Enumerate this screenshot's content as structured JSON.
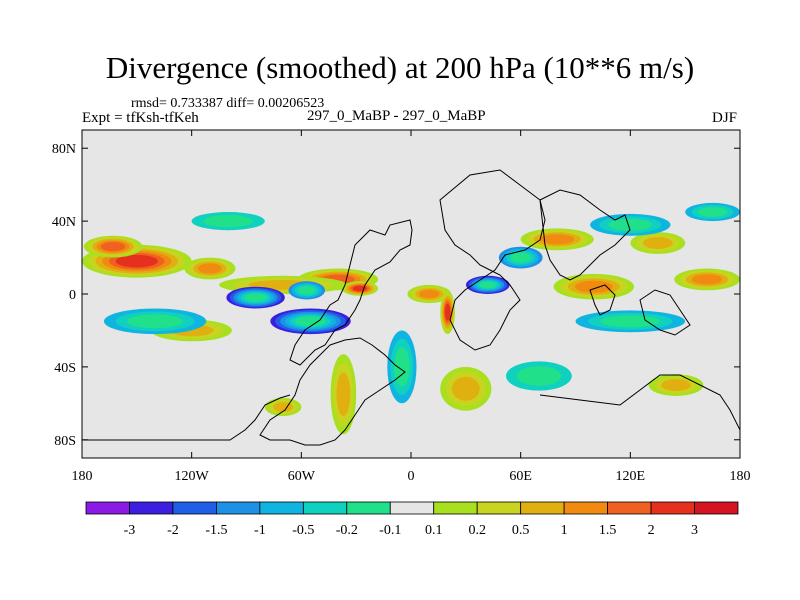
{
  "chart_data": {
    "type": "heatmap",
    "title": "Divergence (smoothed) at 200 hPa (10**6 m/s)",
    "stats_label": "rmsd= 0.733387 diff= 0.00206523",
    "expt_label": "Expt = tfKsh-tfKeh",
    "subtitle": "297_0_MaBP - 297_0_MaBP",
    "season": "DJF",
    "x_ticks": [
      "180",
      "120W",
      "60W",
      "0",
      "60E",
      "120E",
      "180"
    ],
    "y_ticks": [
      "80N",
      "40N",
      "0",
      "40S",
      "80S"
    ],
    "xlim": [
      -180,
      180
    ],
    "ylim": [
      -90,
      90
    ],
    "colorbar": {
      "colors": [
        "#8a1be6",
        "#3b1ee0",
        "#1e5fe6",
        "#1e90e6",
        "#10b4e0",
        "#10d0c0",
        "#20e08a",
        "#e6e6e6",
        "#a8e020",
        "#c8d420",
        "#e0b010",
        "#f08a10",
        "#f06020",
        "#e6301e",
        "#d4141e"
      ],
      "labels": [
        "-3",
        "-2",
        "-1.5",
        "-1",
        "-0.5",
        "-0.2",
        "-0.1",
        "0.1",
        "0.2",
        "0.5",
        "1",
        "1.5",
        "2",
        "3"
      ]
    },
    "features": [
      {
        "lon": -150,
        "lat": 18,
        "rx": 30,
        "ry": 9,
        "value": 2.2
      },
      {
        "lon": -163,
        "lat": 26,
        "rx": 16,
        "ry": 6,
        "value": 1.6
      },
      {
        "lon": -110,
        "lat": 14,
        "rx": 14,
        "ry": 6,
        "value": 1.2
      },
      {
        "lon": -40,
        "lat": 8,
        "rx": 22,
        "ry": 6,
        "value": 1.6
      },
      {
        "lon": -28,
        "lat": 3,
        "rx": 10,
        "ry": 4,
        "value": 2.6
      },
      {
        "lon": 10,
        "lat": 0,
        "rx": 12,
        "ry": 5,
        "value": 1.2
      },
      {
        "lon": 20,
        "lat": -10,
        "rx": 4,
        "ry": 12,
        "value": 2.5
      },
      {
        "lon": 100,
        "lat": 4,
        "rx": 22,
        "ry": 7,
        "value": 1.5
      },
      {
        "lon": 162,
        "lat": 8,
        "rx": 18,
        "ry": 6,
        "value": 1.3
      },
      {
        "lon": 80,
        "lat": 30,
        "rx": 20,
        "ry": 6,
        "value": 1.1
      },
      {
        "lon": 135,
        "lat": 28,
        "rx": 15,
        "ry": 6,
        "value": 0.8
      },
      {
        "lon": -120,
        "lat": -20,
        "rx": 22,
        "ry": 6,
        "value": 0.6
      },
      {
        "lon": -70,
        "lat": -62,
        "rx": 10,
        "ry": 5,
        "value": 0.8
      },
      {
        "lon": -37,
        "lat": -55,
        "rx": 7,
        "ry": 22,
        "value": 0.9
      },
      {
        "lon": 30,
        "lat": -52,
        "rx": 14,
        "ry": 12,
        "value": 0.6
      },
      {
        "lon": 145,
        "lat": -50,
        "rx": 15,
        "ry": 6,
        "value": 1.0
      },
      {
        "lon": -70,
        "lat": 5,
        "rx": 35,
        "ry": 5,
        "value": 0.6
      },
      {
        "lon": -85,
        "lat": -2,
        "rx": 16,
        "ry": 6,
        "value": -2.3
      },
      {
        "lon": -55,
        "lat": -15,
        "rx": 22,
        "ry": 7,
        "value": -2.7
      },
      {
        "lon": -57,
        "lat": 2,
        "rx": 10,
        "ry": 5,
        "value": -1.2
      },
      {
        "lon": 42,
        "lat": 5,
        "rx": 12,
        "ry": 5,
        "value": -2.6
      },
      {
        "lon": 60,
        "lat": 20,
        "rx": 12,
        "ry": 6,
        "value": -1.1
      },
      {
        "lon": 120,
        "lat": 38,
        "rx": 22,
        "ry": 6,
        "value": -1.0
      },
      {
        "lon": -140,
        "lat": -15,
        "rx": 28,
        "ry": 7,
        "value": -0.8
      },
      {
        "lon": -100,
        "lat": 40,
        "rx": 20,
        "ry": 5,
        "value": -0.5
      },
      {
        "lon": 120,
        "lat": -15,
        "rx": 30,
        "ry": 6,
        "value": -0.7
      },
      {
        "lon": -5,
        "lat": -40,
        "rx": 8,
        "ry": 20,
        "value": -0.6
      },
      {
        "lon": 70,
        "lat": -45,
        "rx": 18,
        "ry": 8,
        "value": -0.5
      },
      {
        "lon": 165,
        "lat": 45,
        "rx": 15,
        "ry": 5,
        "value": -0.8
      }
    ]
  }
}
